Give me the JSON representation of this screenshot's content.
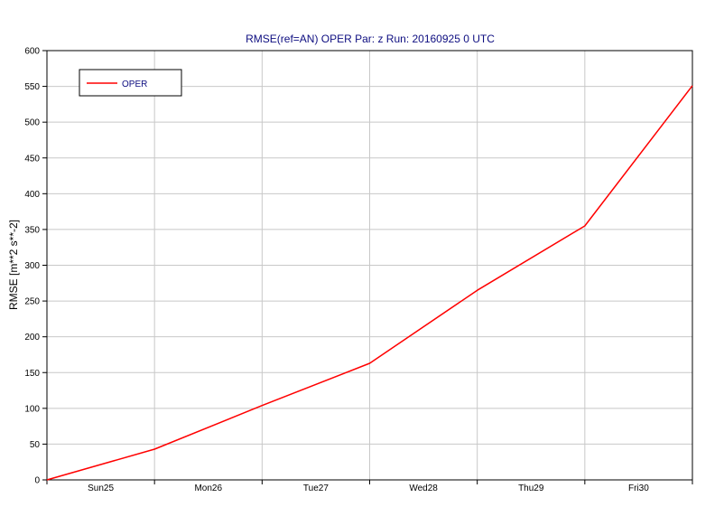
{
  "chart_data": {
    "type": "line",
    "title": "RMSE(ref=AN) OPER Par: z Run: 20160925 0 UTC",
    "xlabel": "",
    "ylabel": "RMSE [m**2 s**-2]",
    "categories": [
      "Sun25",
      "Mon26",
      "Tue27",
      "Wed28",
      "Thu29",
      "Fri30"
    ],
    "ylim": [
      0,
      600
    ],
    "yticks": [
      0,
      50,
      100,
      150,
      200,
      250,
      300,
      350,
      400,
      450,
      500,
      550,
      600
    ],
    "grid": true,
    "legend_position": "top-left",
    "series": [
      {
        "name": "OPER",
        "color": "#ff0000",
        "points": [
          {
            "day": 0,
            "value": 0
          },
          {
            "day": 1,
            "value": 43
          },
          {
            "day": 2,
            "value": 104
          },
          {
            "day": 3,
            "value": 163
          },
          {
            "day": 4,
            "value": 265
          },
          {
            "day": 5,
            "value": 355
          },
          {
            "day": 6,
            "value": 551
          }
        ]
      }
    ],
    "colors": {
      "title": "#0d0d80",
      "highlight_tick": "#ff0000",
      "grid": "#c8c8c8"
    }
  }
}
